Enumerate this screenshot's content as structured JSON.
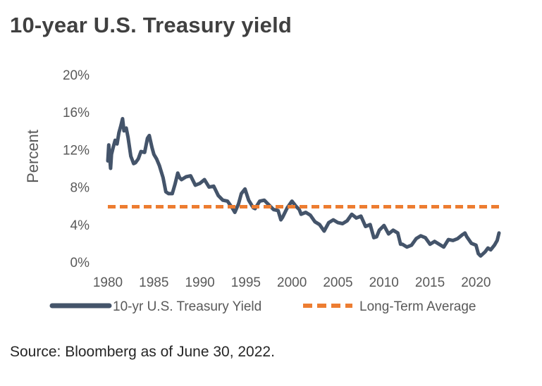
{
  "title": "10-year U.S. Treasury yield",
  "source": "Source: Bloomberg as of June 30, 2022.",
  "colors": {
    "yield_line": "#44546a",
    "average_line": "#ed7d31"
  },
  "chart_data": {
    "type": "line",
    "title": "10-year U.S. Treasury yield",
    "xlabel": "",
    "ylabel": "Percent",
    "xlim": [
      1980,
      2022.5
    ],
    "ylim": [
      0,
      20
    ],
    "x_ticks": [
      1980,
      1985,
      1990,
      1995,
      2000,
      2005,
      2010,
      2015,
      2020
    ],
    "y_ticks": [
      0,
      4,
      8,
      12,
      16,
      20
    ],
    "y_tick_labels": [
      "0%",
      "4%",
      "8%",
      "12%",
      "16%",
      "20%"
    ],
    "legend_position": "bottom",
    "series": [
      {
        "name": "10-yr U.S. Treasury Yield",
        "style": "solid",
        "x": [
          1980.0,
          1980.1,
          1980.3,
          1980.4,
          1980.6,
          1980.8,
          1981.0,
          1981.2,
          1981.4,
          1981.6,
          1981.75,
          1982.0,
          1982.2,
          1982.5,
          1982.8,
          1983.0,
          1983.3,
          1983.6,
          1984.0,
          1984.3,
          1984.5,
          1984.8,
          1985.0,
          1985.3,
          1985.6,
          1986.0,
          1986.3,
          1986.6,
          1987.0,
          1987.3,
          1987.6,
          1987.8,
          1988.0,
          1988.5,
          1989.0,
          1989.5,
          1990.0,
          1990.5,
          1991.0,
          1991.5,
          1992.0,
          1992.5,
          1993.0,
          1993.5,
          1993.8,
          1994.2,
          1994.5,
          1994.9,
          1995.3,
          1995.8,
          1996.0,
          1996.5,
          1997.0,
          1997.5,
          1998.0,
          1998.5,
          1998.8,
          1999.0,
          1999.5,
          2000.0,
          2000.4,
          2000.8,
          2001.0,
          2001.5,
          2002.0,
          2002.5,
          2003.0,
          2003.5,
          2004.0,
          2004.5,
          2005.0,
          2005.5,
          2006.0,
          2006.5,
          2007.0,
          2007.5,
          2008.0,
          2008.5,
          2008.9,
          2009.2,
          2009.5,
          2010.0,
          2010.5,
          2011.0,
          2011.5,
          2011.8,
          2012.0,
          2012.5,
          2013.0,
          2013.5,
          2014.0,
          2014.5,
          2015.0,
          2015.5,
          2016.0,
          2016.5,
          2017.0,
          2017.5,
          2018.0,
          2018.5,
          2018.8,
          2019.0,
          2019.5,
          2020.0,
          2020.25,
          2020.5,
          2021.0,
          2021.3,
          2021.6,
          2022.0,
          2022.3,
          2022.5
        ],
        "values": [
          10.8,
          12.5,
          10.0,
          11.5,
          12.3,
          13.0,
          12.6,
          13.8,
          14.5,
          15.3,
          14.0,
          14.3,
          13.3,
          11.3,
          10.5,
          10.6,
          11.0,
          11.8,
          11.7,
          13.2,
          13.5,
          12.2,
          11.5,
          11.0,
          10.3,
          9.0,
          7.5,
          7.3,
          7.3,
          8.3,
          9.5,
          9.0,
          8.8,
          9.1,
          9.2,
          8.2,
          8.4,
          8.8,
          8.0,
          8.1,
          7.1,
          6.6,
          6.5,
          5.8,
          5.3,
          6.2,
          7.3,
          7.8,
          6.6,
          5.8,
          5.7,
          6.5,
          6.6,
          6.1,
          5.6,
          5.5,
          4.5,
          4.8,
          5.8,
          6.5,
          6.0,
          5.6,
          5.1,
          5.3,
          5.0,
          4.3,
          4.0,
          3.3,
          4.2,
          4.5,
          4.2,
          4.1,
          4.4,
          5.1,
          4.7,
          4.9,
          3.8,
          4.0,
          2.6,
          2.7,
          3.4,
          3.9,
          3.0,
          3.4,
          3.1,
          1.9,
          1.9,
          1.6,
          1.8,
          2.5,
          2.8,
          2.6,
          1.9,
          2.2,
          1.9,
          1.6,
          2.4,
          2.3,
          2.5,
          2.9,
          3.1,
          2.7,
          2.0,
          1.8,
          0.9,
          0.65,
          1.1,
          1.5,
          1.3,
          1.8,
          2.3,
          3.1
        ]
      },
      {
        "name": "Long-Term Average",
        "style": "dashed",
        "x": [
          1980,
          2022.5
        ],
        "values": [
          5.9,
          5.9
        ]
      }
    ]
  }
}
